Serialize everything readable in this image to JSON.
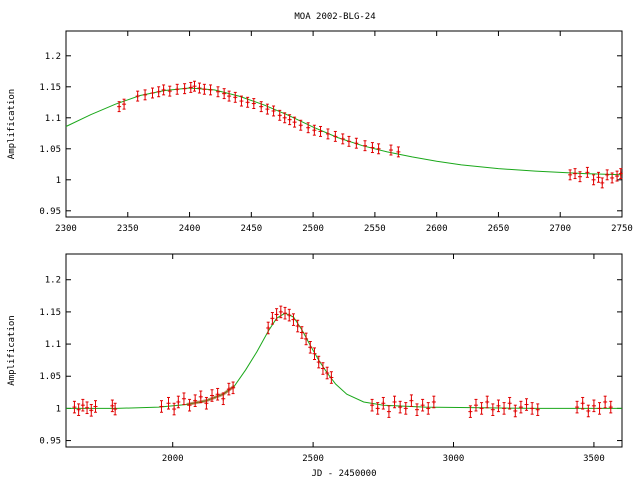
{
  "figure_title": "MOA 2002-BLG-24",
  "colors": {
    "model": "#1aa81a",
    "points": "#e00000",
    "axes": "#000000"
  },
  "chart_data": [
    {
      "type": "scatter",
      "title": "MOA 2002-BLG-24",
      "xlabel": "",
      "ylabel": "Amplification",
      "xlim": [
        2300,
        2750
      ],
      "ylim": [
        0.94,
        1.24
      ],
      "x_ticks": [
        2300,
        2350,
        2400,
        2450,
        2500,
        2550,
        2600,
        2650,
        2700,
        2750
      ],
      "y_ticks": [
        0.95,
        1,
        1.05,
        1.1,
        1.15,
        1.2
      ],
      "x_tick_labels": [
        "2300",
        "2350",
        "2400",
        "2450",
        "2500",
        "2550",
        "2600",
        "2650",
        "2700",
        "2750"
      ],
      "y_tick_labels": [
        "0.95",
        "1",
        "1.05",
        "1.1",
        "1.15",
        "1.2"
      ],
      "grid": false,
      "series": [
        {
          "kind": "model",
          "x": [
            2300,
            2320,
            2340,
            2360,
            2380,
            2400,
            2420,
            2440,
            2460,
            2480,
            2500,
            2520,
            2540,
            2560,
            2580,
            2600,
            2620,
            2650,
            2680,
            2700,
            2720,
            2750
          ],
          "y": [
            1.086,
            1.105,
            1.122,
            1.136,
            1.144,
            1.148,
            1.145,
            1.135,
            1.121,
            1.104,
            1.085,
            1.068,
            1.055,
            1.045,
            1.037,
            1.03,
            1.024,
            1.018,
            1.014,
            1.012,
            1.01,
            1.008
          ]
        },
        {
          "kind": "points_with_error",
          "x": [
            2343,
            2347,
            2358,
            2364,
            2370,
            2375,
            2379,
            2384,
            2390,
            2396,
            2401,
            2404,
            2408,
            2412,
            2417,
            2423,
            2428,
            2432,
            2437,
            2442,
            2447,
            2452,
            2458,
            2463,
            2468,
            2473,
            2477,
            2481,
            2485,
            2490,
            2496,
            2501,
            2506,
            2512,
            2518,
            2524,
            2529,
            2535,
            2542,
            2548,
            2553,
            2563,
            2569,
            2708,
            2712,
            2716,
            2722,
            2727,
            2731,
            2734,
            2738,
            2742,
            2746,
            2749
          ],
          "y": [
            1.118,
            1.122,
            1.135,
            1.137,
            1.14,
            1.142,
            1.145,
            1.143,
            1.146,
            1.147,
            1.149,
            1.151,
            1.148,
            1.146,
            1.145,
            1.142,
            1.139,
            1.135,
            1.133,
            1.127,
            1.125,
            1.123,
            1.118,
            1.114,
            1.111,
            1.104,
            1.1,
            1.097,
            1.093,
            1.088,
            1.084,
            1.08,
            1.078,
            1.074,
            1.07,
            1.066,
            1.062,
            1.059,
            1.055,
            1.052,
            1.05,
            1.048,
            1.045,
            1.008,
            1.01,
            1.005,
            1.012,
            1.0,
            1.004,
            0.995,
            1.008,
            1.003,
            1.006,
            1.01
          ],
          "err": 0.008
        }
      ]
    },
    {
      "type": "scatter",
      "title": "",
      "xlabel": "JD - 2450000",
      "ylabel": "Amplification",
      "xlim": [
        1620,
        3600
      ],
      "ylim": [
        0.94,
        1.24
      ],
      "x_ticks": [
        2000,
        2500,
        3000,
        3500
      ],
      "y_ticks": [
        0.95,
        1,
        1.05,
        1.1,
        1.15,
        1.2
      ],
      "x_tick_labels": [
        "2000",
        "2500",
        "3000",
        "3500"
      ],
      "y_tick_labels": [
        "0.95",
        "1",
        "1.05",
        "1.1",
        "1.15",
        "1.2"
      ],
      "grid": false,
      "series": [
        {
          "kind": "model",
          "x": [
            1620,
            1800,
            1950,
            2050,
            2120,
            2180,
            2220,
            2260,
            2300,
            2340,
            2370,
            2400,
            2430,
            2460,
            2490,
            2520,
            2550,
            2580,
            2620,
            2680,
            2750,
            2900,
            3100,
            3300,
            3600
          ],
          "y": [
            1.0,
            1.0,
            1.002,
            1.006,
            1.012,
            1.022,
            1.035,
            1.06,
            1.088,
            1.12,
            1.14,
            1.148,
            1.142,
            1.122,
            1.098,
            1.075,
            1.055,
            1.038,
            1.022,
            1.01,
            1.005,
            1.002,
            1.001,
            1.0,
            1.0
          ],
          "band_x": [
            2050,
            2120,
            2180,
            2220
          ],
          "band_y": [
            1.006,
            1.012,
            1.022,
            1.035
          ]
        },
        {
          "kind": "points_with_error",
          "x": [
            1650,
            1665,
            1680,
            1695,
            1710,
            1725,
            1785,
            1795,
            1960,
            1985,
            2005,
            2020,
            2040,
            2060,
            2080,
            2100,
            2120,
            2140,
            2160,
            2180,
            2200,
            2215,
            2340,
            2355,
            2370,
            2385,
            2400,
            2415,
            2430,
            2445,
            2460,
            2475,
            2490,
            2505,
            2520,
            2535,
            2550,
            2565,
            2710,
            2730,
            2750,
            2770,
            2790,
            2810,
            2830,
            2850,
            2870,
            2890,
            2910,
            2930,
            3060,
            3080,
            3100,
            3120,
            3140,
            3160,
            3180,
            3200,
            3220,
            3240,
            3260,
            3280,
            3300,
            3440,
            3460,
            3480,
            3500,
            3520,
            3540,
            3560
          ],
          "y": [
            1.002,
            0.998,
            1.005,
            1.001,
            0.997,
            1.003,
            1.004,
            0.999,
            1.003,
            1.008,
            0.999,
            1.01,
            1.015,
            1.005,
            1.012,
            1.018,
            1.008,
            1.02,
            1.022,
            1.015,
            1.03,
            1.032,
            1.125,
            1.14,
            1.146,
            1.15,
            1.148,
            1.145,
            1.138,
            1.128,
            1.118,
            1.108,
            1.095,
            1.085,
            1.072,
            1.062,
            1.055,
            1.048,
            1.005,
            1.0,
            1.008,
            0.995,
            1.01,
            1.002,
            1.0,
            1.012,
            0.998,
            1.005,
            1.0,
            1.01,
            0.995,
            1.005,
            1.0,
            1.01,
            0.998,
            1.004,
            1.0,
            1.008,
            0.996,
            1.002,
            1.006,
            1.0,
            0.998,
            1.002,
            1.008,
            0.996,
            1.004,
            1.0,
            1.01,
            1.002
          ],
          "err": 0.009
        }
      ]
    }
  ]
}
